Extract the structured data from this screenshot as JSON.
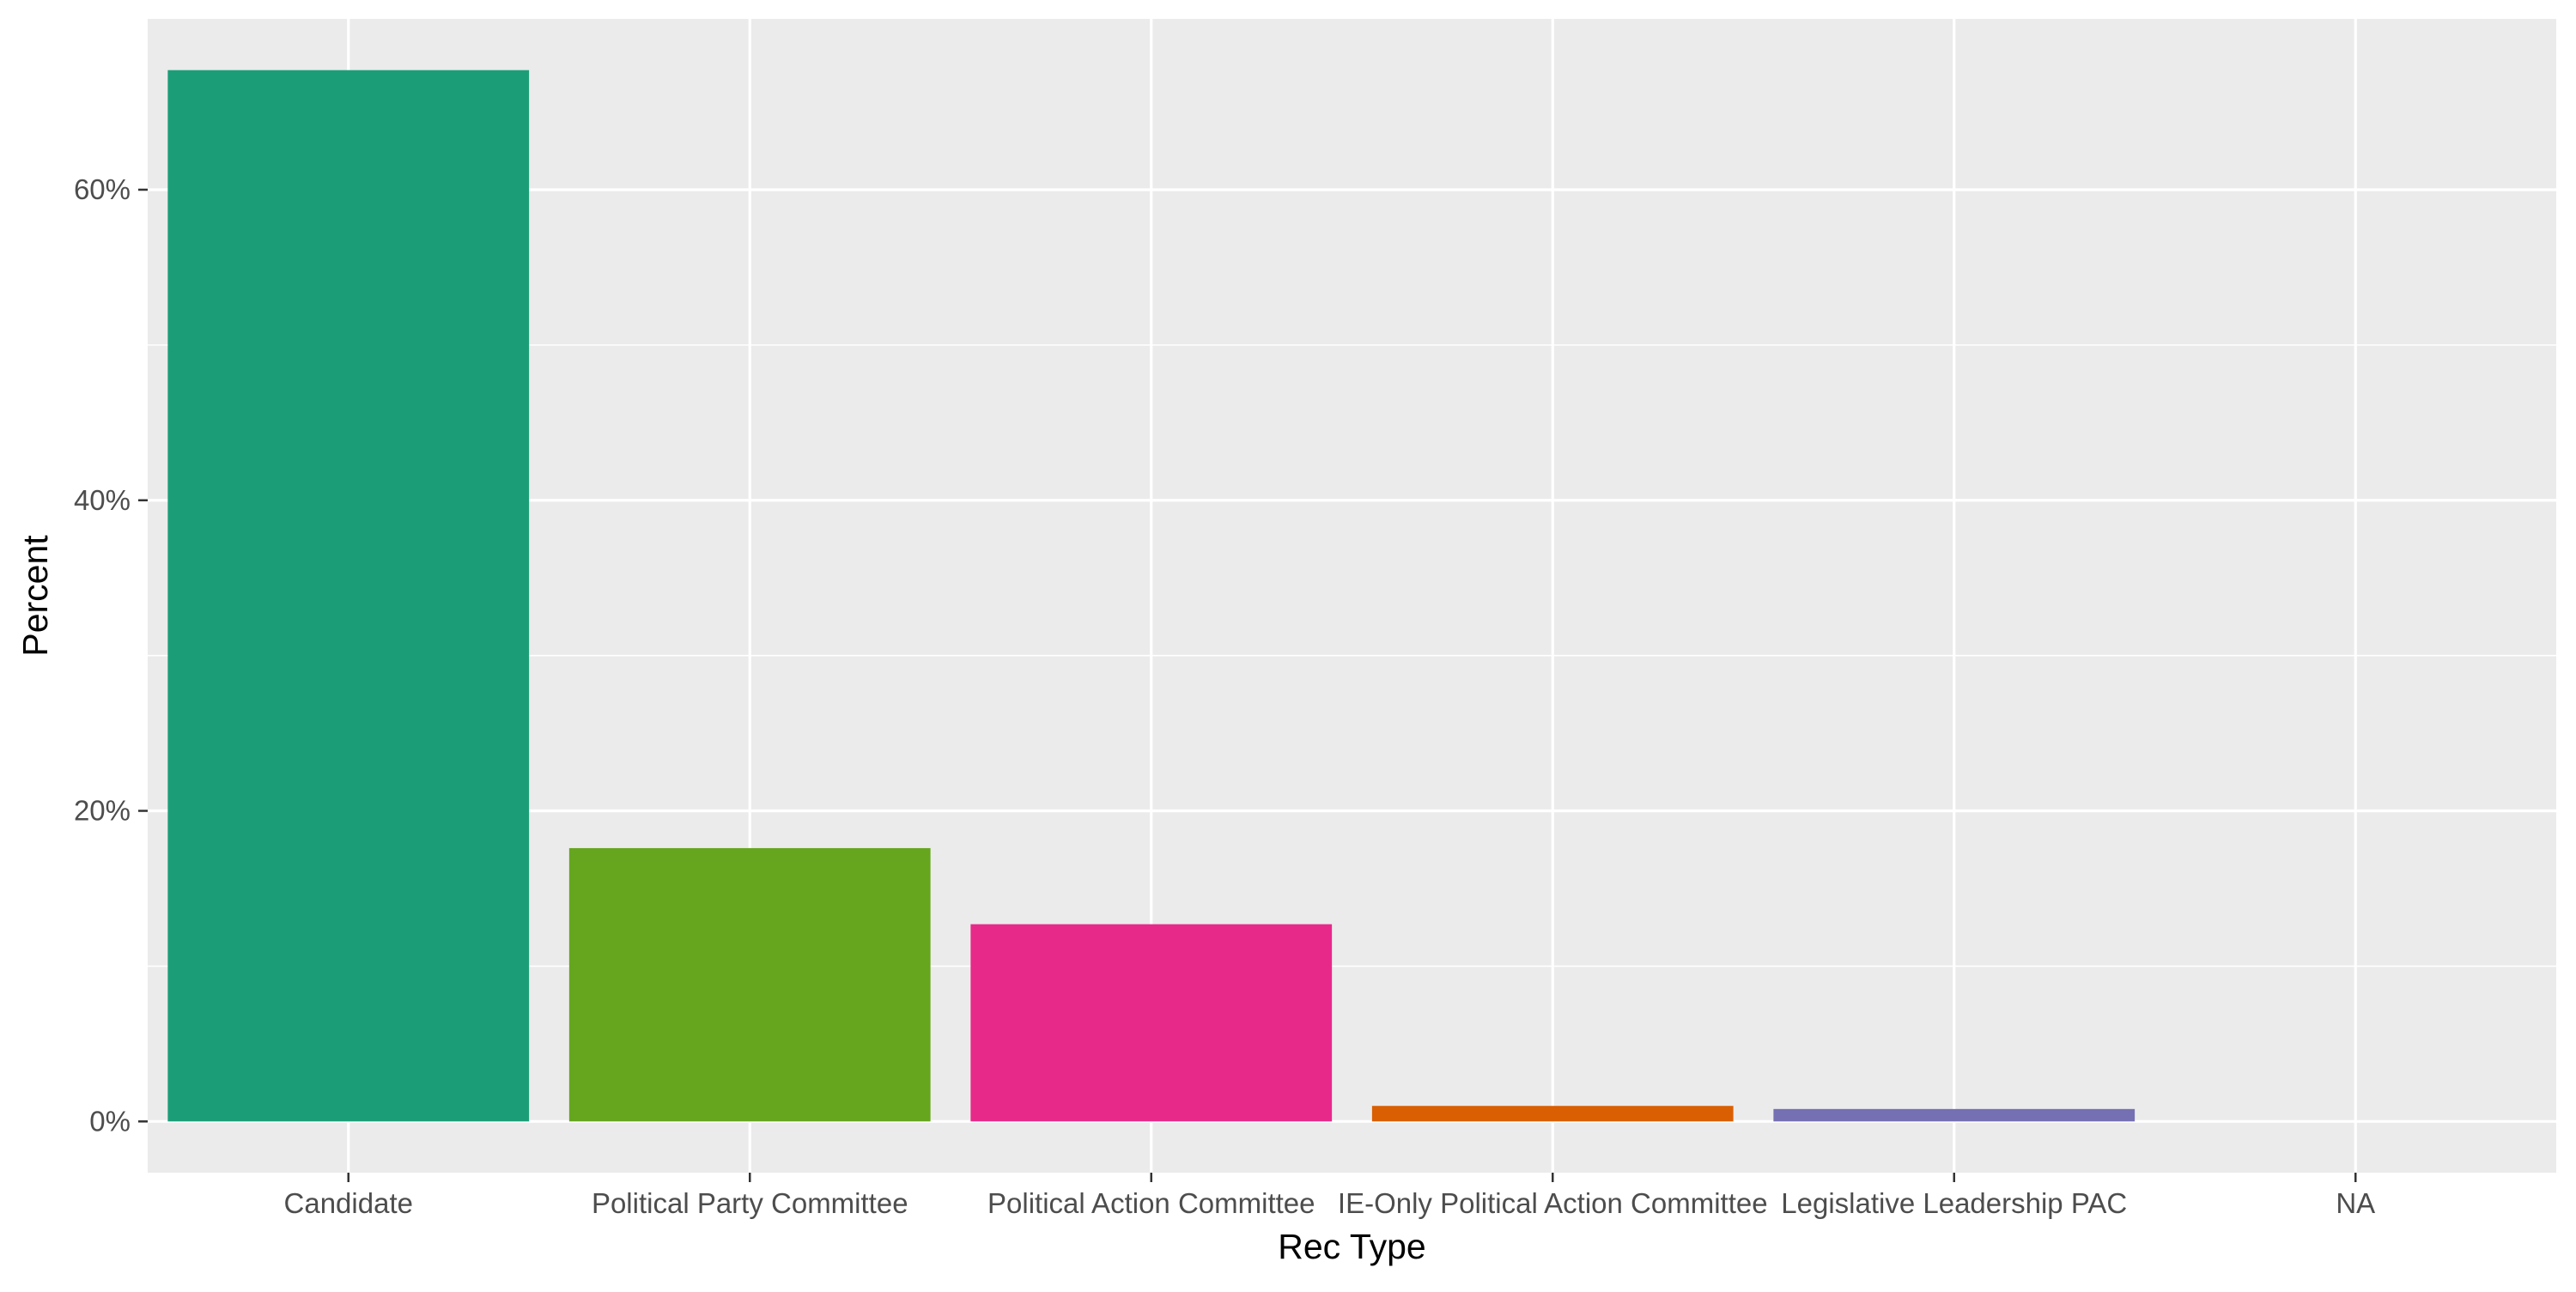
{
  "chart_data": {
    "type": "bar",
    "xlabel": "Rec Type",
    "ylabel": "Percent",
    "categories": [
      "Candidate",
      "Political Party Committee",
      "Political Action Committee",
      "IE-Only Political Action Committee",
      "Legislative Leadership PAC",
      "NA"
    ],
    "values": [
      67.7,
      17.6,
      12.7,
      1.0,
      0.8,
      0.0
    ],
    "value_unit": "%",
    "colors": [
      "#1b9e77",
      "#66a61e",
      "#e7298a",
      "#d95f02",
      "#7570b3",
      "#666666"
    ],
    "ylim": [
      -3.3,
      71.0
    ],
    "yticks": [
      0,
      20,
      40,
      60
    ],
    "ytick_labels": [
      "0%",
      "20%",
      "40%",
      "60%"
    ],
    "grid": true,
    "legend": "none",
    "panel_background": "#ebebeb",
    "grid_color": "#ffffff"
  }
}
